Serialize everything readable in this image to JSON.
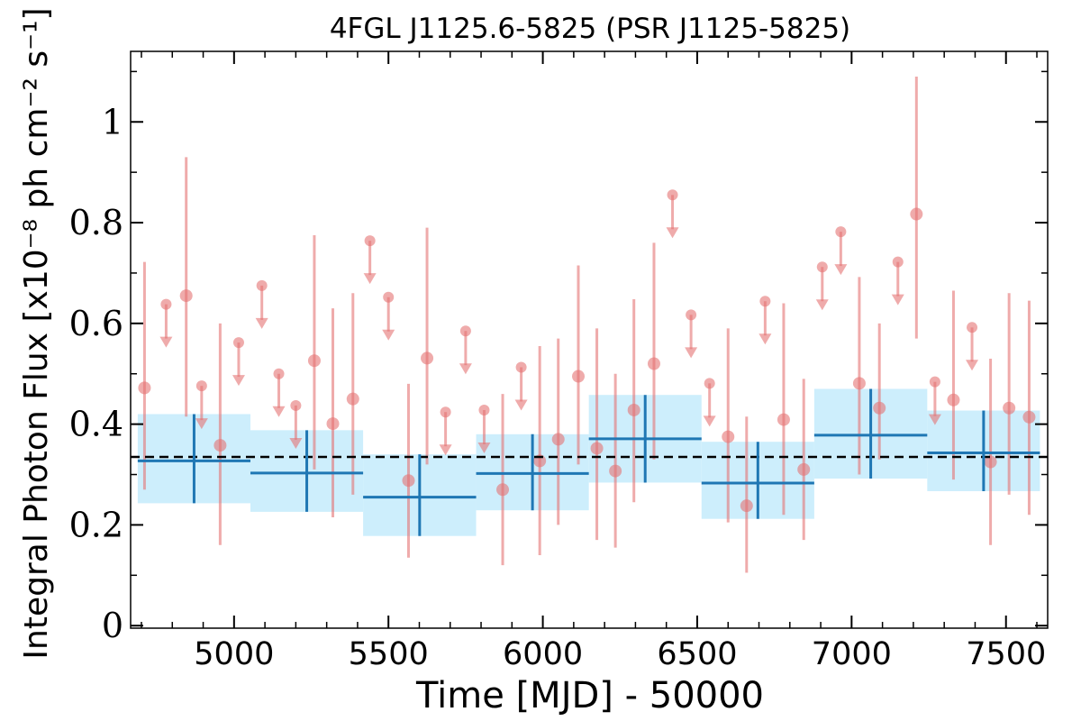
{
  "chart_data": {
    "type": "scatter",
    "title": "4FGL J1125.6-5825 (PSR J1125-5825)",
    "xlabel": "Time [MJD] - 50000",
    "ylabel": "Integral Photon Flux [x10⁻⁸ ph cm⁻² s⁻¹]",
    "xlim": [
      4665,
      7635
    ],
    "ylim": [
      -0.005,
      1.14
    ],
    "x_ticks": [
      "5000",
      "5500",
      "6000",
      "6500",
      "7000",
      "7500"
    ],
    "y_ticks": [
      "0",
      "0.2",
      "0.4",
      "0.6",
      "0.8",
      "1"
    ],
    "grid": false,
    "average_flux": 0.335,
    "colors": {
      "points": "#e57373",
      "yearly_line": "#1f77b4",
      "yearly_band": "#cdeefc",
      "average_line": "#000000"
    },
    "series": [
      {
        "kind": "monthly_detections",
        "points": [
          {
            "x": 4710,
            "y": 0.472,
            "ylo": 0.27,
            "yhi": 0.722
          },
          {
            "x": 4845,
            "y": 0.655,
            "ylo": 0.415,
            "yhi": 0.93
          },
          {
            "x": 4955,
            "y": 0.358,
            "ylo": 0.16,
            "yhi": 0.6
          },
          {
            "x": 5260,
            "y": 0.526,
            "ylo": 0.31,
            "yhi": 0.775
          },
          {
            "x": 5320,
            "y": 0.401,
            "ylo": 0.215,
            "yhi": 0.63
          },
          {
            "x": 5385,
            "y": 0.45,
            "ylo": 0.26,
            "yhi": 0.66
          },
          {
            "x": 5565,
            "y": 0.288,
            "ylo": 0.135,
            "yhi": 0.48
          },
          {
            "x": 5625,
            "y": 0.531,
            "ylo": 0.32,
            "yhi": 0.79
          },
          {
            "x": 5870,
            "y": 0.27,
            "ylo": 0.12,
            "yhi": 0.46
          },
          {
            "x": 5990,
            "y": 0.327,
            "ylo": 0.14,
            "yhi": 0.555
          },
          {
            "x": 6050,
            "y": 0.37,
            "ylo": 0.2,
            "yhi": 0.57
          },
          {
            "x": 6115,
            "y": 0.495,
            "ylo": 0.32,
            "yhi": 0.715
          },
          {
            "x": 6175,
            "y": 0.352,
            "ylo": 0.17,
            "yhi": 0.59
          },
          {
            "x": 6235,
            "y": 0.307,
            "ylo": 0.155,
            "yhi": 0.5
          },
          {
            "x": 6295,
            "y": 0.428,
            "ylo": 0.245,
            "yhi": 0.648
          },
          {
            "x": 6360,
            "y": 0.52,
            "ylo": 0.33,
            "yhi": 0.76
          },
          {
            "x": 6600,
            "y": 0.375,
            "ylo": 0.205,
            "yhi": 0.59
          },
          {
            "x": 6660,
            "y": 0.238,
            "ylo": 0.105,
            "yhi": 0.415
          },
          {
            "x": 6780,
            "y": 0.409,
            "ylo": 0.22,
            "yhi": 0.64
          },
          {
            "x": 6845,
            "y": 0.31,
            "ylo": 0.17,
            "yhi": 0.49
          },
          {
            "x": 7025,
            "y": 0.481,
            "ylo": 0.3,
            "yhi": 0.692
          },
          {
            "x": 7090,
            "y": 0.432,
            "ylo": 0.33,
            "yhi": 0.6
          },
          {
            "x": 7210,
            "y": 0.817,
            "ylo": 0.57,
            "yhi": 1.09
          },
          {
            "x": 7330,
            "y": 0.448,
            "ylo": 0.29,
            "yhi": 0.665
          },
          {
            "x": 7450,
            "y": 0.325,
            "ylo": 0.16,
            "yhi": 0.53
          },
          {
            "x": 7510,
            "y": 0.432,
            "ylo": 0.26,
            "yhi": 0.66
          },
          {
            "x": 7575,
            "y": 0.414,
            "ylo": 0.22,
            "yhi": 0.645
          }
        ]
      },
      {
        "kind": "monthly_upper_limits",
        "points": [
          {
            "x": 4780,
            "y": 0.638
          },
          {
            "x": 4895,
            "y": 0.476
          },
          {
            "x": 5015,
            "y": 0.562
          },
          {
            "x": 5090,
            "y": 0.675
          },
          {
            "x": 5145,
            "y": 0.5
          },
          {
            "x": 5200,
            "y": 0.437
          },
          {
            "x": 5440,
            "y": 0.764
          },
          {
            "x": 5500,
            "y": 0.652
          },
          {
            "x": 5685,
            "y": 0.424
          },
          {
            "x": 5750,
            "y": 0.585
          },
          {
            "x": 5810,
            "y": 0.428
          },
          {
            "x": 5930,
            "y": 0.513
          },
          {
            "x": 6420,
            "y": 0.855
          },
          {
            "x": 6480,
            "y": 0.617
          },
          {
            "x": 6540,
            "y": 0.481
          },
          {
            "x": 6720,
            "y": 0.644
          },
          {
            "x": 6905,
            "y": 0.712
          },
          {
            "x": 6965,
            "y": 0.782
          },
          {
            "x": 7150,
            "y": 0.722
          },
          {
            "x": 7270,
            "y": 0.484
          },
          {
            "x": 7390,
            "y": 0.592
          }
        ]
      },
      {
        "kind": "yearly_bins",
        "bins": [
          {
            "x0": 4688,
            "x1": 5053,
            "y": 0.327,
            "ylo": 0.243,
            "yhi": 0.42
          },
          {
            "x0": 5053,
            "x1": 5418,
            "y": 0.303,
            "ylo": 0.226,
            "yhi": 0.388
          },
          {
            "x0": 5418,
            "x1": 5784,
            "y": 0.255,
            "ylo": 0.178,
            "yhi": 0.34
          },
          {
            "x0": 5784,
            "x1": 6149,
            "y": 0.302,
            "ylo": 0.229,
            "yhi": 0.38
          },
          {
            "x0": 6149,
            "x1": 6514,
            "y": 0.371,
            "ylo": 0.284,
            "yhi": 0.458
          },
          {
            "x0": 6514,
            "x1": 6879,
            "y": 0.283,
            "ylo": 0.212,
            "yhi": 0.365
          },
          {
            "x0": 6879,
            "x1": 7245,
            "y": 0.378,
            "ylo": 0.292,
            "yhi": 0.47
          },
          {
            "x0": 7245,
            "x1": 7610,
            "y": 0.343,
            "ylo": 0.267,
            "yhi": 0.427
          }
        ]
      }
    ]
  }
}
